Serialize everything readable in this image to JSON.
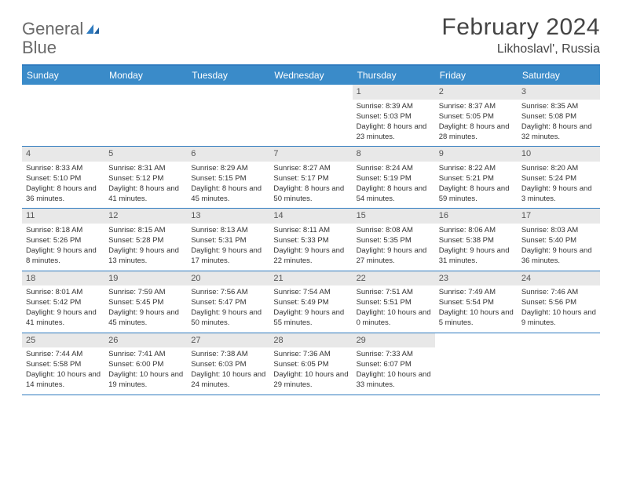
{
  "brand": {
    "name_gray": "General",
    "name_blue": "Blue",
    "icon_color": "#2f7bbf"
  },
  "title": "February 2024",
  "location": "Likhoslavl', Russia",
  "colors": {
    "header_bg": "#3a8bc9",
    "border": "#2f7bbf",
    "daynum_bg": "#e8e8e8",
    "text": "#333333"
  },
  "weekdays": [
    "Sunday",
    "Monday",
    "Tuesday",
    "Wednesday",
    "Thursday",
    "Friday",
    "Saturday"
  ],
  "weeks": [
    [
      null,
      null,
      null,
      null,
      {
        "n": "1",
        "sunrise": "Sunrise: 8:39 AM",
        "sunset": "Sunset: 5:03 PM",
        "daylight": "Daylight: 8 hours and 23 minutes."
      },
      {
        "n": "2",
        "sunrise": "Sunrise: 8:37 AM",
        "sunset": "Sunset: 5:05 PM",
        "daylight": "Daylight: 8 hours and 28 minutes."
      },
      {
        "n": "3",
        "sunrise": "Sunrise: 8:35 AM",
        "sunset": "Sunset: 5:08 PM",
        "daylight": "Daylight: 8 hours and 32 minutes."
      }
    ],
    [
      {
        "n": "4",
        "sunrise": "Sunrise: 8:33 AM",
        "sunset": "Sunset: 5:10 PM",
        "daylight": "Daylight: 8 hours and 36 minutes."
      },
      {
        "n": "5",
        "sunrise": "Sunrise: 8:31 AM",
        "sunset": "Sunset: 5:12 PM",
        "daylight": "Daylight: 8 hours and 41 minutes."
      },
      {
        "n": "6",
        "sunrise": "Sunrise: 8:29 AM",
        "sunset": "Sunset: 5:15 PM",
        "daylight": "Daylight: 8 hours and 45 minutes."
      },
      {
        "n": "7",
        "sunrise": "Sunrise: 8:27 AM",
        "sunset": "Sunset: 5:17 PM",
        "daylight": "Daylight: 8 hours and 50 minutes."
      },
      {
        "n": "8",
        "sunrise": "Sunrise: 8:24 AM",
        "sunset": "Sunset: 5:19 PM",
        "daylight": "Daylight: 8 hours and 54 minutes."
      },
      {
        "n": "9",
        "sunrise": "Sunrise: 8:22 AM",
        "sunset": "Sunset: 5:21 PM",
        "daylight": "Daylight: 8 hours and 59 minutes."
      },
      {
        "n": "10",
        "sunrise": "Sunrise: 8:20 AM",
        "sunset": "Sunset: 5:24 PM",
        "daylight": "Daylight: 9 hours and 3 minutes."
      }
    ],
    [
      {
        "n": "11",
        "sunrise": "Sunrise: 8:18 AM",
        "sunset": "Sunset: 5:26 PM",
        "daylight": "Daylight: 9 hours and 8 minutes."
      },
      {
        "n": "12",
        "sunrise": "Sunrise: 8:15 AM",
        "sunset": "Sunset: 5:28 PM",
        "daylight": "Daylight: 9 hours and 13 minutes."
      },
      {
        "n": "13",
        "sunrise": "Sunrise: 8:13 AM",
        "sunset": "Sunset: 5:31 PM",
        "daylight": "Daylight: 9 hours and 17 minutes."
      },
      {
        "n": "14",
        "sunrise": "Sunrise: 8:11 AM",
        "sunset": "Sunset: 5:33 PM",
        "daylight": "Daylight: 9 hours and 22 minutes."
      },
      {
        "n": "15",
        "sunrise": "Sunrise: 8:08 AM",
        "sunset": "Sunset: 5:35 PM",
        "daylight": "Daylight: 9 hours and 27 minutes."
      },
      {
        "n": "16",
        "sunrise": "Sunrise: 8:06 AM",
        "sunset": "Sunset: 5:38 PM",
        "daylight": "Daylight: 9 hours and 31 minutes."
      },
      {
        "n": "17",
        "sunrise": "Sunrise: 8:03 AM",
        "sunset": "Sunset: 5:40 PM",
        "daylight": "Daylight: 9 hours and 36 minutes."
      }
    ],
    [
      {
        "n": "18",
        "sunrise": "Sunrise: 8:01 AM",
        "sunset": "Sunset: 5:42 PM",
        "daylight": "Daylight: 9 hours and 41 minutes."
      },
      {
        "n": "19",
        "sunrise": "Sunrise: 7:59 AM",
        "sunset": "Sunset: 5:45 PM",
        "daylight": "Daylight: 9 hours and 45 minutes."
      },
      {
        "n": "20",
        "sunrise": "Sunrise: 7:56 AM",
        "sunset": "Sunset: 5:47 PM",
        "daylight": "Daylight: 9 hours and 50 minutes."
      },
      {
        "n": "21",
        "sunrise": "Sunrise: 7:54 AM",
        "sunset": "Sunset: 5:49 PM",
        "daylight": "Daylight: 9 hours and 55 minutes."
      },
      {
        "n": "22",
        "sunrise": "Sunrise: 7:51 AM",
        "sunset": "Sunset: 5:51 PM",
        "daylight": "Daylight: 10 hours and 0 minutes."
      },
      {
        "n": "23",
        "sunrise": "Sunrise: 7:49 AM",
        "sunset": "Sunset: 5:54 PM",
        "daylight": "Daylight: 10 hours and 5 minutes."
      },
      {
        "n": "24",
        "sunrise": "Sunrise: 7:46 AM",
        "sunset": "Sunset: 5:56 PM",
        "daylight": "Daylight: 10 hours and 9 minutes."
      }
    ],
    [
      {
        "n": "25",
        "sunrise": "Sunrise: 7:44 AM",
        "sunset": "Sunset: 5:58 PM",
        "daylight": "Daylight: 10 hours and 14 minutes."
      },
      {
        "n": "26",
        "sunrise": "Sunrise: 7:41 AM",
        "sunset": "Sunset: 6:00 PM",
        "daylight": "Daylight: 10 hours and 19 minutes."
      },
      {
        "n": "27",
        "sunrise": "Sunrise: 7:38 AM",
        "sunset": "Sunset: 6:03 PM",
        "daylight": "Daylight: 10 hours and 24 minutes."
      },
      {
        "n": "28",
        "sunrise": "Sunrise: 7:36 AM",
        "sunset": "Sunset: 6:05 PM",
        "daylight": "Daylight: 10 hours and 29 minutes."
      },
      {
        "n": "29",
        "sunrise": "Sunrise: 7:33 AM",
        "sunset": "Sunset: 6:07 PM",
        "daylight": "Daylight: 10 hours and 33 minutes."
      },
      null,
      null
    ]
  ]
}
